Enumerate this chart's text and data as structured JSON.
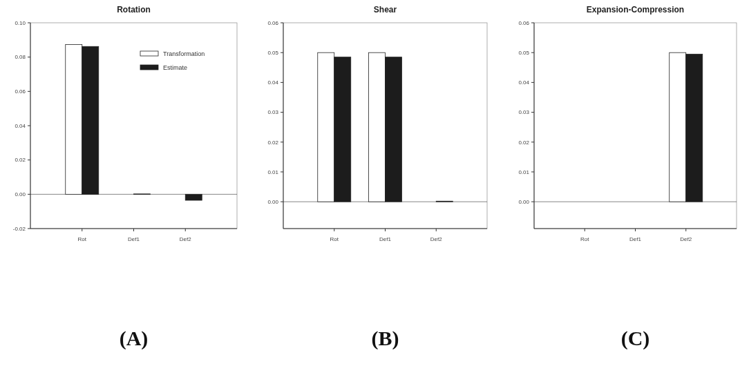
{
  "chart_data": [
    {
      "type": "bar",
      "title": "Rotation",
      "categories": [
        "Rot",
        "Def1",
        "Def2"
      ],
      "ylim": [
        -0.02,
        0.1
      ],
      "yticks": [
        {
          "value": -0.02,
          "label": "-0.02"
        },
        {
          "value": 0,
          "label": "0.00"
        },
        {
          "value": 0.02,
          "label": "0.02"
        },
        {
          "value": 0.04,
          "label": "0.04"
        },
        {
          "value": 0.06,
          "label": "0.06"
        },
        {
          "value": 0.08,
          "label": "0.08"
        },
        {
          "value": 0.1,
          "label": "0.10"
        }
      ],
      "legend": "top right",
      "annotations": [
        "(A)"
      ],
      "series": [
        {
          "name": "Transformation",
          "color": "#ffffff",
          "values": [
            0.0873,
            0,
            0
          ]
        },
        {
          "name": "Estimate",
          "color": "#1c1c1c",
          "values": [
            0.0862,
            0.0002,
            -0.0035
          ]
        }
      ]
    },
    {
      "type": "bar",
      "title": "Shear",
      "categories": [
        "Rot",
        "Def1",
        "Def2"
      ],
      "ylim": [
        -0.009,
        0.06
      ],
      "yticks": [
        {
          "value": 0,
          "label": "0.00"
        },
        {
          "value": 0.01,
          "label": "0.01"
        },
        {
          "value": 0.02,
          "label": "0.02"
        },
        {
          "value": 0.03,
          "label": "0.03"
        },
        {
          "value": 0.04,
          "label": "0.04"
        },
        {
          "value": 0.05,
          "label": "0.05"
        },
        {
          "value": 0.06,
          "label": "0.06"
        }
      ],
      "annotations": [
        "(B)"
      ],
      "series": [
        {
          "color": "#ffffff",
          "values": [
            0.05,
            0.05,
            0
          ]
        },
        {
          "color": "#1c1c1c",
          "values": [
            0.0485,
            0.0485,
            0.0002
          ]
        }
      ]
    },
    {
      "type": "bar",
      "title": "Expansion-Compression",
      "categories": [
        "Rot",
        "Def1",
        "Def2"
      ],
      "ylim": [
        -0.009,
        0.06
      ],
      "yticks": [
        {
          "value": 0,
          "label": "0.00"
        },
        {
          "value": 0.01,
          "label": "0.01"
        },
        {
          "value": 0.02,
          "label": "0.02"
        },
        {
          "value": 0.03,
          "label": "0.03"
        },
        {
          "value": 0.04,
          "label": "0.04"
        },
        {
          "value": 0.05,
          "label": "0.05"
        },
        {
          "value": 0.06,
          "label": "0.06"
        }
      ],
      "annotations": [
        "(C)"
      ],
      "series": [
        {
          "color": "#ffffff",
          "values": [
            0,
            0,
            0.05
          ]
        },
        {
          "color": "#1c1c1c",
          "values": [
            0,
            0,
            0.0495
          ]
        }
      ]
    }
  ]
}
